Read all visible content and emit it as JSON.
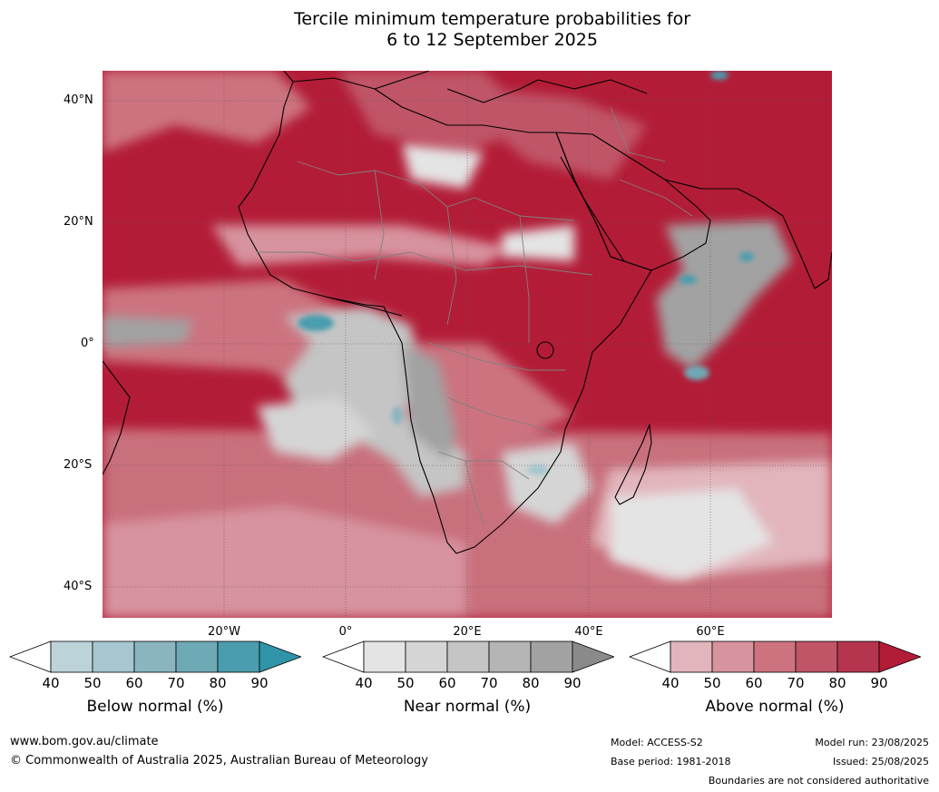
{
  "title": {
    "line1": "Tercile minimum temperature probabilities for",
    "line2": "6 to 12 September 2025"
  },
  "map": {
    "lat_labels": [
      "40°N",
      "20°N",
      "0°",
      "20°S",
      "40°S"
    ],
    "lon_labels": [
      "20°W",
      "0°",
      "20°E",
      "40°E",
      "60°E"
    ],
    "colors": {
      "ocean_base": "#b31c37",
      "land_base": "#b31c37",
      "coast": "#000000",
      "borders": "#808080",
      "grid": "#555555"
    }
  },
  "colorbars": [
    {
      "label": "Below normal (%)",
      "ticks": [
        "40",
        "50",
        "60",
        "70",
        "80",
        "90"
      ],
      "colors": [
        "#ffffff",
        "#bdd3da",
        "#a6c7cf",
        "#8ab5c0",
        "#6eaab5",
        "#4a9dae",
        "#3094a8"
      ]
    },
    {
      "label": "Near normal (%)",
      "ticks": [
        "40",
        "50",
        "60",
        "70",
        "80",
        "90"
      ],
      "colors": [
        "#ffffff",
        "#e4e4e4",
        "#d5d5d5",
        "#c5c5c5",
        "#b5b5b5",
        "#a2a2a2",
        "#8a8a8a"
      ]
    },
    {
      "label": "Above normal (%)",
      "ticks": [
        "40",
        "50",
        "60",
        "70",
        "80",
        "90"
      ],
      "colors": [
        "#ffffff",
        "#e2b5bc",
        "#d7939e",
        "#cc737f",
        "#c05567",
        "#b6354e",
        "#b31c37"
      ]
    }
  ],
  "footer": {
    "url": "www.bom.gov.au/climate",
    "copyright": "© Commonwealth of Australia 2025, Australian Bureau of Meteorology",
    "model": "Model: ACCESS-S2",
    "base_period": "Base period: 1981-2018",
    "model_run": "Model run: 23/08/2025",
    "issued": "Issued: 25/08/2025",
    "disclaimer": "Boundaries are not considered authoritative"
  }
}
